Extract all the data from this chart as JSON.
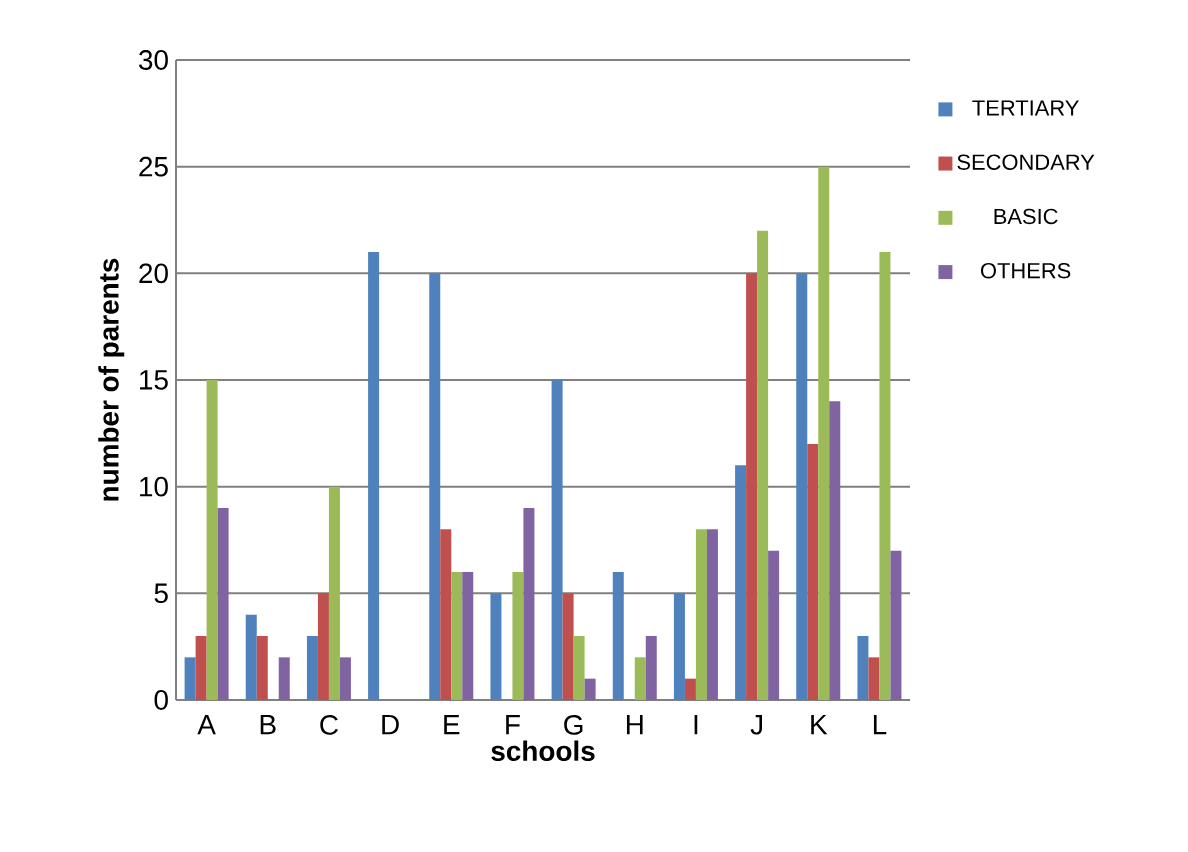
{
  "chart_data": {
    "type": "bar",
    "xlabel": "schools",
    "ylabel": "number of parents",
    "categories": [
      "A",
      "B",
      "C",
      "D",
      "E",
      "F",
      "G",
      "H",
      "I",
      "J",
      "K",
      "L"
    ],
    "series": [
      {
        "name": "TERTIARY",
        "color": "#4f81bd",
        "values": [
          2,
          4,
          3,
          21,
          20,
          5,
          15,
          6,
          5,
          11,
          20,
          3
        ]
      },
      {
        "name": "SECONDARY",
        "color": "#c0504d",
        "values": [
          3,
          3,
          5,
          0,
          8,
          0,
          5,
          0,
          1,
          20,
          12,
          2
        ]
      },
      {
        "name": "BASIC",
        "color": "#9bbb59",
        "values": [
          15,
          0,
          10,
          0,
          6,
          6,
          3,
          2,
          8,
          22,
          25,
          21
        ]
      },
      {
        "name": "OTHERS",
        "color": "#8064a2",
        "values": [
          9,
          2,
          2,
          0,
          6,
          9,
          1,
          3,
          8,
          7,
          14,
          7
        ]
      }
    ],
    "ylim": [
      0,
      30
    ],
    "yticks": [
      0,
      5,
      10,
      15,
      20,
      25,
      30
    ],
    "grid": "y",
    "legend": "right"
  }
}
